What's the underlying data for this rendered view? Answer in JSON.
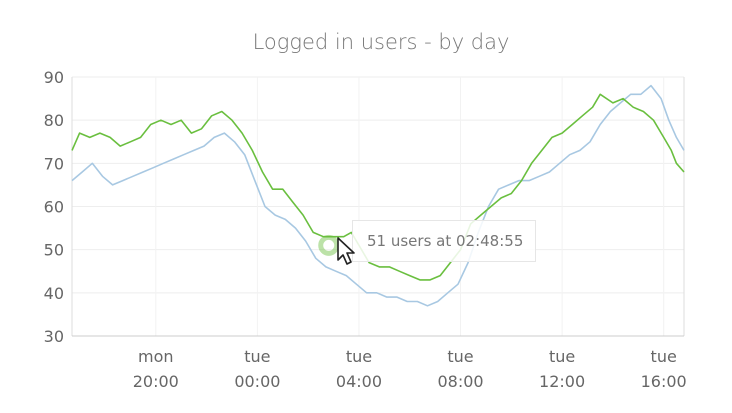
{
  "chart_data": {
    "type": "line",
    "title": "Logged in users - by day",
    "ylim": [
      30,
      90
    ],
    "yticks": [
      30,
      40,
      50,
      60,
      70,
      80,
      90
    ],
    "grid": true,
    "x_ticks": [
      {
        "day": "mon",
        "time": "20:00"
      },
      {
        "day": "tue",
        "time": "00:00"
      },
      {
        "day": "tue",
        "time": "04:00"
      },
      {
        "day": "tue",
        "time": "08:00"
      },
      {
        "day": "tue",
        "time": "12:00"
      },
      {
        "day": "tue",
        "time": "16:00"
      }
    ],
    "x_hours": [
      -4,
      0,
      4,
      8,
      12,
      16
    ],
    "xlim_hours": [
      -7.3,
      16.8
    ],
    "series": [
      {
        "color": "#6abf3f",
        "points": [
          [
            -7.3,
            73
          ],
          [
            -7.0,
            77
          ],
          [
            -6.6,
            76
          ],
          [
            -6.2,
            77
          ],
          [
            -5.8,
            76
          ],
          [
            -5.4,
            74
          ],
          [
            -5.0,
            75
          ],
          [
            -4.6,
            76
          ],
          [
            -4.2,
            79
          ],
          [
            -3.8,
            80
          ],
          [
            -3.4,
            79
          ],
          [
            -3.0,
            80
          ],
          [
            -2.6,
            77
          ],
          [
            -2.2,
            78
          ],
          [
            -1.8,
            81
          ],
          [
            -1.4,
            82
          ],
          [
            -1.0,
            80
          ],
          [
            -0.6,
            77
          ],
          [
            -0.2,
            73
          ],
          [
            0.2,
            68
          ],
          [
            0.6,
            64
          ],
          [
            1.0,
            64
          ],
          [
            1.4,
            61
          ],
          [
            1.8,
            58
          ],
          [
            2.2,
            54
          ],
          [
            2.6,
            53
          ],
          [
            3.0,
            53
          ],
          [
            3.4,
            53
          ],
          [
            3.7,
            54
          ],
          [
            4.0,
            51
          ],
          [
            4.4,
            47
          ],
          [
            4.8,
            46
          ],
          [
            5.2,
            46
          ],
          [
            5.6,
            45
          ],
          [
            6.0,
            44
          ],
          [
            6.4,
            43
          ],
          [
            6.8,
            43
          ],
          [
            7.2,
            44
          ],
          [
            7.6,
            47
          ],
          [
            8.0,
            50
          ],
          [
            8.4,
            56
          ],
          [
            8.8,
            58
          ],
          [
            9.2,
            60
          ],
          [
            9.6,
            62
          ],
          [
            10.0,
            63
          ],
          [
            10.4,
            66
          ],
          [
            10.8,
            70
          ],
          [
            11.2,
            73
          ],
          [
            11.6,
            76
          ],
          [
            12.0,
            77
          ],
          [
            12.4,
            79
          ],
          [
            12.8,
            81
          ],
          [
            13.2,
            83
          ],
          [
            13.5,
            86
          ],
          [
            14.0,
            84
          ],
          [
            14.4,
            85
          ],
          [
            14.8,
            83
          ],
          [
            15.2,
            82
          ],
          [
            15.6,
            80
          ],
          [
            16.0,
            76
          ],
          [
            16.3,
            73
          ],
          [
            16.5,
            70
          ],
          [
            16.8,
            68
          ]
        ]
      },
      {
        "color": "#a8c8e2",
        "points": [
          [
            -7.3,
            66
          ],
          [
            -6.9,
            68
          ],
          [
            -6.5,
            70
          ],
          [
            -6.1,
            67
          ],
          [
            -5.7,
            65
          ],
          [
            -5.3,
            66
          ],
          [
            -4.9,
            67
          ],
          [
            -4.5,
            68
          ],
          [
            -4.1,
            69
          ],
          [
            -3.7,
            70
          ],
          [
            -3.3,
            71
          ],
          [
            -2.9,
            72
          ],
          [
            -2.5,
            73
          ],
          [
            -2.1,
            74
          ],
          [
            -1.7,
            76
          ],
          [
            -1.3,
            77
          ],
          [
            -0.9,
            75
          ],
          [
            -0.5,
            72
          ],
          [
            -0.1,
            66
          ],
          [
            0.3,
            60
          ],
          [
            0.7,
            58
          ],
          [
            1.1,
            57
          ],
          [
            1.5,
            55
          ],
          [
            1.9,
            52
          ],
          [
            2.3,
            48
          ],
          [
            2.7,
            46
          ],
          [
            3.1,
            45
          ],
          [
            3.5,
            44
          ],
          [
            3.9,
            42
          ],
          [
            4.3,
            40
          ],
          [
            4.7,
            40
          ],
          [
            5.1,
            39
          ],
          [
            5.5,
            39
          ],
          [
            5.9,
            38
          ],
          [
            6.3,
            38
          ],
          [
            6.7,
            37
          ],
          [
            7.1,
            38
          ],
          [
            7.5,
            40
          ],
          [
            7.9,
            42
          ],
          [
            8.3,
            47
          ],
          [
            8.7,
            54
          ],
          [
            9.1,
            60
          ],
          [
            9.5,
            64
          ],
          [
            9.9,
            65
          ],
          [
            10.3,
            66
          ],
          [
            10.7,
            66
          ],
          [
            11.1,
            67
          ],
          [
            11.5,
            68
          ],
          [
            11.9,
            70
          ],
          [
            12.3,
            72
          ],
          [
            12.7,
            73
          ],
          [
            13.1,
            75
          ],
          [
            13.5,
            79
          ],
          [
            13.9,
            82
          ],
          [
            14.3,
            84
          ],
          [
            14.7,
            86
          ],
          [
            15.1,
            86
          ],
          [
            15.5,
            88
          ],
          [
            15.9,
            85
          ],
          [
            16.2,
            80
          ],
          [
            16.5,
            76
          ],
          [
            16.8,
            73
          ]
        ]
      }
    ],
    "highlight": {
      "hours": 2.81,
      "value": 51
    },
    "tooltip": "51 users at 02:48:55"
  }
}
